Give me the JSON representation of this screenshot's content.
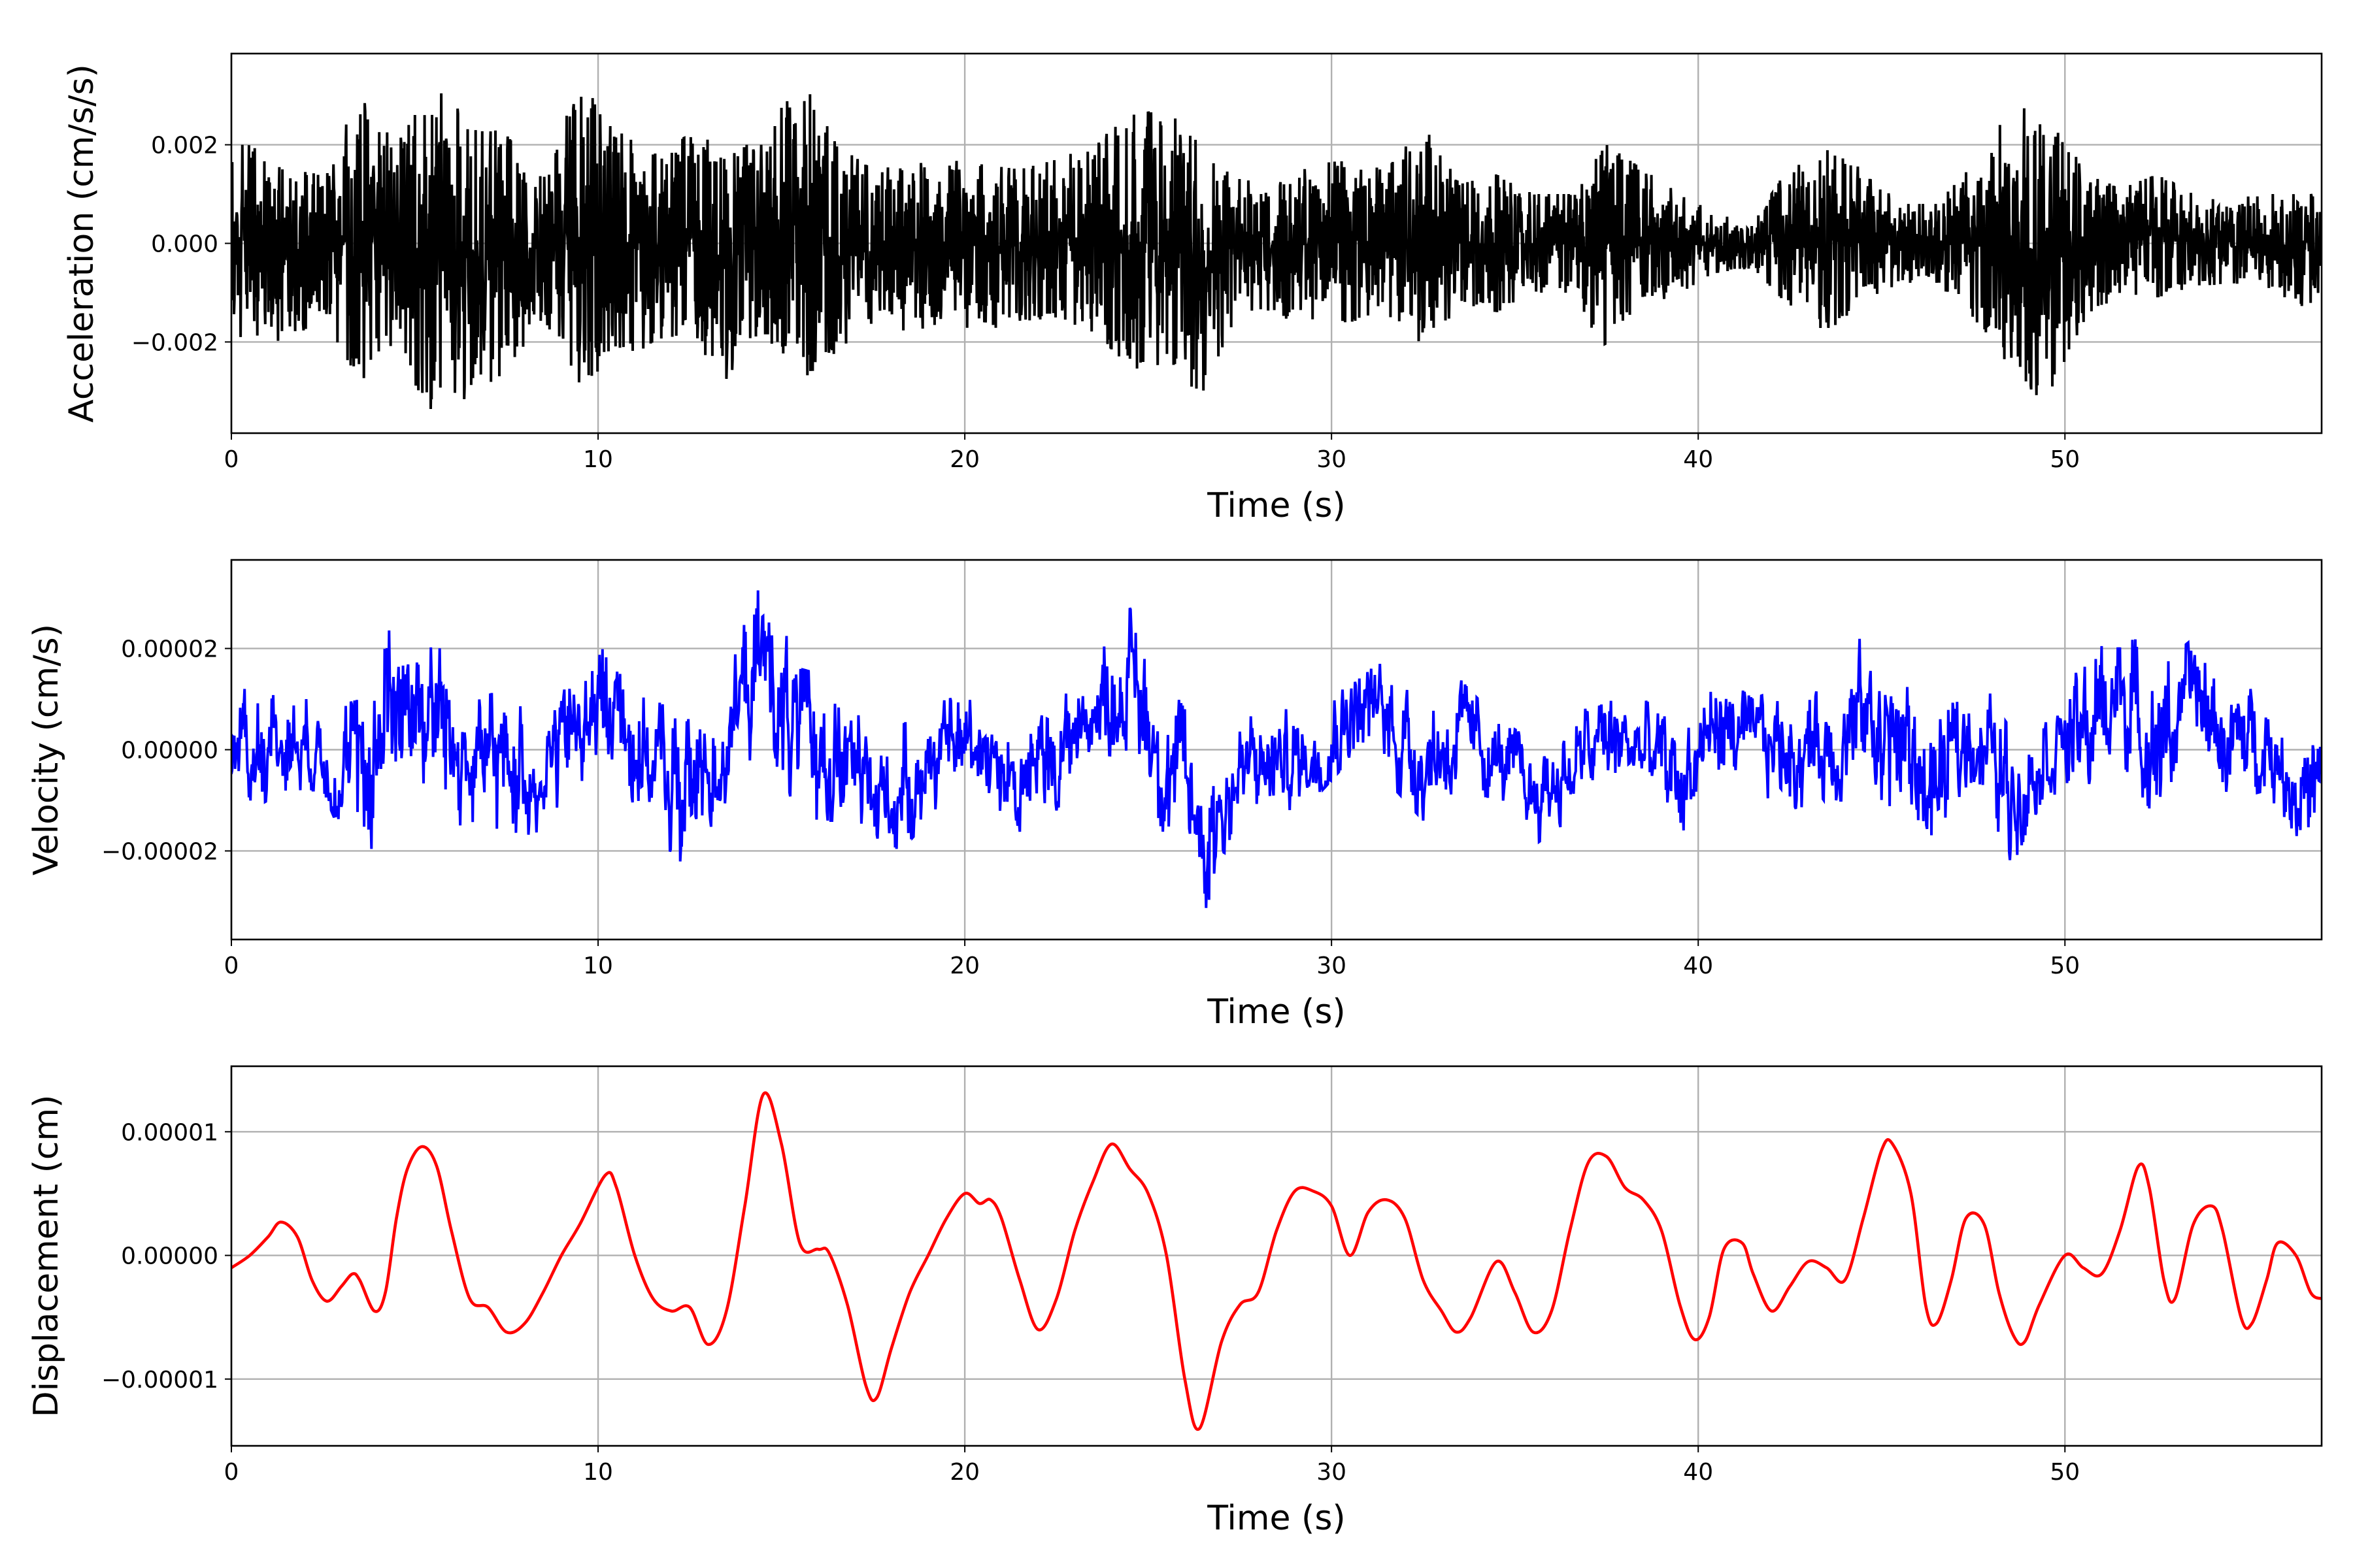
{
  "chart_data": [
    {
      "type": "line",
      "name": "acceleration",
      "ylabel": "Acceleration (cm/s/s)",
      "xlabel": "Time (s)",
      "color": "#000000",
      "xlim": [
        0,
        57
      ],
      "ylim": [
        -0.00385,
        0.00385
      ],
      "grid": true,
      "xticks": [
        0,
        10,
        20,
        30,
        40,
        50
      ],
      "xtick_labels": [
        "0",
        "10",
        "20",
        "30",
        "40",
        "50"
      ],
      "yticks": [
        -0.002,
        0,
        0.002
      ],
      "ytick_labels": [
        "−0.002",
        "0.000",
        "0.002"
      ],
      "envelope_scale": 0.001,
      "upper": [
        2.0,
        1.5,
        1.4,
        3.0,
        2.0,
        3.2,
        2.5,
        2.2,
        1.3,
        3.3,
        2.3,
        1.8,
        2.2,
        2.0,
        2.0,
        3.5,
        2.0,
        1.5,
        1.6,
        1.7,
        1.6,
        1.5,
        1.7,
        2.0,
        2.6,
        2.7,
        2.0,
        1.3,
        1.2,
        1.6,
        1.7,
        1.5,
        2.4,
        1.2,
        1.4,
        1.0,
        1.0,
        2.0,
        1.5,
        1.0,
        0.6,
        0.4,
        1.6,
        1.9,
        1.5,
        0.8,
        0.8,
        1.6,
        2.7,
        2.8,
        1.5,
        1.1,
        1.4,
        1.0,
        0.9,
        1.0,
        1.0
      ],
      "lower": [
        -1.9,
        -2.0,
        -1.5,
        -2.8,
        -2.2,
        -3.5,
        -3.1,
        -2.6,
        -1.5,
        -2.9,
        -2.5,
        -2.0,
        -1.8,
        -2.9,
        -1.8,
        -2.8,
        -2.2,
        -1.6,
        -1.8,
        -1.6,
        -1.8,
        -1.6,
        -1.5,
        -1.8,
        -2.5,
        -2.7,
        -3.0,
        -1.3,
        -1.5,
        -1.6,
        -1.6,
        -1.4,
        -2.3,
        -1.2,
        -1.4,
        -1.0,
        -1.0,
        -2.2,
        -1.3,
        -1.0,
        -0.6,
        -0.5,
        -1.3,
        -1.8,
        -1.2,
        -0.8,
        -0.8,
        -1.5,
        -2.5,
        -3.3,
        -1.6,
        -1.0,
        -1.1,
        -0.9,
        -0.8,
        -0.9,
        -1.3
      ]
    },
    {
      "type": "line",
      "name": "velocity",
      "ylabel": "Velocity (cm/s)",
      "xlabel": "Time (s)",
      "color": "#0000ff",
      "xlim": [
        0,
        57
      ],
      "ylim": [
        -3.75e-05,
        3.75e-05
      ],
      "grid": true,
      "xticks": [
        0,
        10,
        20,
        30,
        40,
        50
      ],
      "xtick_labels": [
        "0",
        "10",
        "20",
        "30",
        "40",
        "50"
      ],
      "yticks": [
        -2e-05,
        0,
        2e-05
      ],
      "ytick_labels": [
        "−0.00002",
        "0.00000",
        "0.00002"
      ],
      "envelope_scale": 1e-05,
      "upper": [
        1.2,
        1.4,
        0.8,
        1.0,
        3.4,
        2.6,
        1.0,
        1.2,
        0.8,
        1.8,
        2.4,
        1.0,
        0.6,
        1.6,
        3.4,
        1.6,
        1.4,
        0.2,
        0.6,
        1.0,
        1.2,
        0.6,
        1.0,
        1.8,
        2.8,
        1.4,
        0.2,
        0.6,
        0.8,
        0.8,
        1.9,
        1.9,
        1.0,
        1.4,
        0.6,
        0.2,
        0.6,
        1.2,
        1.0,
        0.6,
        1.6,
        1.0,
        1.3,
        1.2,
        2.3,
        1.6,
        0.6,
        1.6,
        0.6,
        1.2,
        1.6,
        2.6,
        1.6,
        2.2,
        1.2,
        1.2,
        0.4
      ],
      "lower": [
        -1.2,
        -0.8,
        -0.8,
        -2.6,
        -0.6,
        -1.2,
        -1.6,
        -1.8,
        -1.6,
        -0.8,
        -0.6,
        -1.6,
        -2.5,
        -1.0,
        0.2,
        -1.4,
        -1.4,
        -2.4,
        -1.8,
        -1.0,
        -0.6,
        -2.2,
        -1.2,
        -0.2,
        0.0,
        -1.8,
        -3.4,
        -1.6,
        -1.4,
        -1.0,
        -0.2,
        -0.6,
        -1.4,
        -0.8,
        -1.0,
        -1.9,
        -1.4,
        -0.8,
        -1.0,
        -2.0,
        -0.6,
        -0.8,
        -1.2,
        -1.0,
        -1.0,
        -1.4,
        -2.4,
        -0.6,
        -2.4,
        -0.8,
        -1.2,
        -0.2,
        -1.4,
        0.0,
        -1.0,
        -0.8,
        -2.1
      ]
    },
    {
      "type": "line",
      "name": "displacement",
      "ylabel": "Displacement (cm)",
      "xlabel": "Time (s)",
      "color": "#ff0000",
      "xlim": [
        0,
        57
      ],
      "ylim": [
        -1.54e-05,
        1.53e-05
      ],
      "grid": true,
      "xticks": [
        0,
        10,
        20,
        30,
        40,
        50
      ],
      "xtick_labels": [
        "0",
        "10",
        "20",
        "30",
        "40",
        "50"
      ],
      "yticks": [
        -1e-05,
        0,
        1e-05
      ],
      "ytick_labels": [
        "−0.00001",
        "0.00000",
        "0.00001"
      ],
      "value_scale": 1e-05,
      "x": [
        0,
        0.5,
        1.0,
        1.35,
        1.8,
        2.2,
        2.6,
        3.0,
        3.3,
        3.5,
        3.9,
        4.2,
        4.5,
        4.8,
        5.2,
        5.6,
        6.0,
        6.5,
        7.0,
        7.5,
        8.0,
        8.5,
        9.0,
        9.5,
        10.2,
        10.5,
        11.0,
        11.5,
        12.0,
        12.5,
        13.0,
        13.5,
        14.0,
        14.5,
        15.0,
        15.5,
        16.0,
        16.3,
        16.8,
        17.3,
        17.6,
        18.0,
        18.5,
        19.0,
        19.5,
        20.0,
        20.4,
        20.7,
        21.0,
        21.5,
        22.0,
        22.5,
        23.0,
        23.5,
        24.0,
        24.5,
        25.0,
        25.5,
        26.0,
        26.4,
        27.0,
        27.5,
        28.0,
        28.5,
        29.0,
        29.5,
        30.0,
        30.5,
        31.0,
        31.5,
        32.0,
        32.5,
        33.0,
        33.4,
        33.8,
        34.5,
        35.0,
        35.5,
        36.0,
        36.5,
        37.0,
        37.5,
        38.0,
        38.5,
        39.0,
        39.5,
        39.9,
        40.3,
        40.7,
        41.2,
        41.5,
        42.0,
        42.5,
        43.0,
        43.5,
        44.0,
        44.5,
        45.0,
        45.3,
        45.8,
        46.2,
        46.5,
        46.9,
        47.3,
        47.8,
        48.2,
        48.6,
        48.9,
        49.3,
        50.0,
        50.5,
        51.0,
        51.5,
        52.0,
        52.3,
        52.7,
        53.0,
        53.5,
        54.0,
        54.3,
        54.8,
        55.1,
        55.5,
        55.8,
        56.3,
        56.7,
        57.0
      ],
      "y": [
        -0.1,
        0,
        0.15,
        0.27,
        0.15,
        -0.2,
        -0.37,
        -0.25,
        -0.15,
        -0.2,
        -0.45,
        -0.3,
        0.3,
        0.7,
        0.88,
        0.72,
        0.2,
        -0.35,
        -0.42,
        -0.62,
        -0.55,
        -0.3,
        0,
        0.25,
        0.65,
        0.55,
        0,
        -0.35,
        -0.45,
        -0.42,
        -0.72,
        -0.45,
        0.4,
        1.3,
        0.9,
        0.1,
        0.05,
        0.02,
        -0.4,
        -1.05,
        -1.15,
        -0.75,
        -0.3,
        0,
        0.3,
        0.5,
        0.42,
        0.45,
        0.3,
        -0.2,
        -0.6,
        -0.35,
        0.2,
        0.6,
        0.9,
        0.7,
        0.5,
        0,
        -1.0,
        -1.4,
        -0.7,
        -0.4,
        -0.3,
        0.2,
        0.52,
        0.52,
        0.4,
        0,
        0.35,
        0.45,
        0.3,
        -0.2,
        -0.45,
        -0.62,
        -0.5,
        -0.05,
        -0.3,
        -0.62,
        -0.45,
        0.2,
        0.75,
        0.8,
        0.55,
        0.45,
        0.2,
        -0.4,
        -0.68,
        -0.5,
        0.05,
        0.1,
        -0.15,
        -0.45,
        -0.25,
        -0.05,
        -0.1,
        -0.2,
        0.3,
        0.85,
        0.9,
        0.5,
        -0.4,
        -0.55,
        -0.2,
        0.3,
        0.25,
        -0.3,
        -0.65,
        -0.7,
        -0.4,
        0,
        -0.1,
        -0.15,
        0.2,
        0.72,
        0.55,
        -0.2,
        -0.35,
        0.25,
        0.4,
        0.2,
        -0.5,
        -0.55,
        -0.2,
        0.1,
        0,
        -0.3,
        -0.35
      ]
    }
  ]
}
